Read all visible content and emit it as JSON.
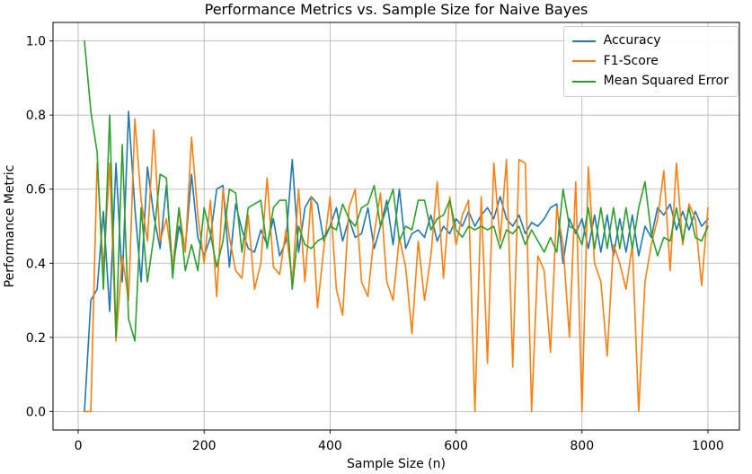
{
  "chart_data": {
    "type": "line",
    "title": "Performance Metrics vs. Sample Size for Naive Bayes",
    "xlabel": "Sample Size (n)",
    "ylabel": "Performance Metric",
    "xlim": [
      -40,
      1050
    ],
    "ylim": [
      -0.05,
      1.05
    ],
    "xticks": [
      0,
      200,
      400,
      600,
      800,
      1000
    ],
    "xtick_labels": [
      "0",
      "200",
      "400",
      "600",
      "800",
      "1000"
    ],
    "yticks": [
      0.0,
      0.2,
      0.4,
      0.6,
      0.8,
      1.0
    ],
    "ytick_labels": [
      "0.0",
      "0.2",
      "0.4",
      "0.6",
      "0.8",
      "1.0"
    ],
    "grid": true,
    "legend": {
      "position": "upper right",
      "entries": [
        "Accuracy",
        "F1-Score",
        "Mean Squared Error"
      ]
    },
    "x": [
      10,
      20,
      30,
      40,
      50,
      60,
      70,
      80,
      90,
      100,
      110,
      120,
      130,
      140,
      150,
      160,
      170,
      180,
      190,
      200,
      210,
      220,
      230,
      240,
      250,
      260,
      270,
      280,
      290,
      300,
      310,
      320,
      330,
      340,
      350,
      360,
      370,
      380,
      390,
      400,
      410,
      420,
      430,
      440,
      450,
      460,
      470,
      480,
      490,
      500,
      510,
      520,
      530,
      540,
      550,
      560,
      570,
      580,
      590,
      600,
      610,
      620,
      630,
      640,
      650,
      660,
      670,
      680,
      690,
      700,
      710,
      720,
      730,
      740,
      750,
      760,
      770,
      780,
      790,
      800,
      810,
      820,
      830,
      840,
      850,
      860,
      870,
      880,
      890,
      900,
      910,
      920,
      930,
      940,
      950,
      960,
      970,
      980,
      990,
      1000
    ],
    "series": [
      {
        "name": "Accuracy",
        "color": "#1f77b4",
        "values": [
          0.0,
          0.3,
          0.33,
          0.54,
          0.27,
          0.67,
          0.35,
          0.81,
          0.55,
          0.35,
          0.66,
          0.53,
          0.44,
          0.61,
          0.38,
          0.5,
          0.44,
          0.64,
          0.47,
          0.42,
          0.47,
          0.6,
          0.61,
          0.39,
          0.56,
          0.49,
          0.44,
          0.43,
          0.49,
          0.45,
          0.52,
          0.42,
          0.46,
          0.68,
          0.43,
          0.55,
          0.58,
          0.56,
          0.46,
          0.5,
          0.55,
          0.46,
          0.52,
          0.47,
          0.48,
          0.55,
          0.44,
          0.5,
          0.57,
          0.45,
          0.6,
          0.44,
          0.48,
          0.49,
          0.47,
          0.53,
          0.46,
          0.5,
          0.48,
          0.52,
          0.5,
          0.54,
          0.5,
          0.53,
          0.55,
          0.52,
          0.58,
          0.52,
          0.5,
          0.53,
          0.48,
          0.51,
          0.5,
          0.52,
          0.55,
          0.56,
          0.4,
          0.52,
          0.48,
          0.52,
          0.44,
          0.53,
          0.43,
          0.53,
          0.42,
          0.52,
          0.43,
          0.53,
          0.42,
          0.5,
          0.47,
          0.55,
          0.53,
          0.56,
          0.49,
          0.54,
          0.49,
          0.54,
          0.5,
          0.52
        ]
      },
      {
        "name": "F1-Score",
        "color": "#ff7f0e",
        "values": [
          0.0,
          0.0,
          0.67,
          0.38,
          0.67,
          0.19,
          0.42,
          0.3,
          0.79,
          0.57,
          0.46,
          0.76,
          0.46,
          0.52,
          0.39,
          0.55,
          0.43,
          0.74,
          0.53,
          0.4,
          0.57,
          0.31,
          0.6,
          0.47,
          0.38,
          0.36,
          0.53,
          0.33,
          0.4,
          0.63,
          0.39,
          0.37,
          0.49,
          0.35,
          0.6,
          0.35,
          0.58,
          0.28,
          0.44,
          0.58,
          0.33,
          0.26,
          0.55,
          0.6,
          0.35,
          0.31,
          0.48,
          0.59,
          0.35,
          0.3,
          0.47,
          0.39,
          0.21,
          0.46,
          0.3,
          0.42,
          0.62,
          0.36,
          0.58,
          0.45,
          0.53,
          0.57,
          0.0,
          0.58,
          0.13,
          0.67,
          0.46,
          0.68,
          0.12,
          0.68,
          0.67,
          0.0,
          0.42,
          0.38,
          0.16,
          0.55,
          0.45,
          0.2,
          0.62,
          0.0,
          0.66,
          0.4,
          0.35,
          0.15,
          0.45,
          0.4,
          0.33,
          0.45,
          0.0,
          0.35,
          0.45,
          0.52,
          0.65,
          0.38,
          0.67,
          0.45,
          0.56,
          0.52,
          0.34,
          0.55
        ]
      },
      {
        "name": "Mean Squared Error",
        "color": "#2ca02c",
        "values": [
          1.0,
          0.81,
          0.7,
          0.33,
          0.8,
          0.2,
          0.72,
          0.25,
          0.19,
          0.55,
          0.35,
          0.47,
          0.64,
          0.63,
          0.36,
          0.55,
          0.38,
          0.45,
          0.38,
          0.55,
          0.48,
          0.39,
          0.46,
          0.6,
          0.59,
          0.43,
          0.55,
          0.56,
          0.57,
          0.44,
          0.55,
          0.57,
          0.57,
          0.33,
          0.5,
          0.45,
          0.44,
          0.46,
          0.47,
          0.5,
          0.49,
          0.56,
          0.52,
          0.5,
          0.55,
          0.56,
          0.61,
          0.5,
          0.55,
          0.6,
          0.46,
          0.5,
          0.49,
          0.57,
          0.57,
          0.49,
          0.52,
          0.53,
          0.57,
          0.49,
          0.47,
          0.5,
          0.49,
          0.5,
          0.49,
          0.5,
          0.44,
          0.49,
          0.48,
          0.5,
          0.45,
          0.49,
          0.46,
          0.43,
          0.47,
          0.43,
          0.6,
          0.5,
          0.49,
          0.45,
          0.55,
          0.44,
          0.55,
          0.44,
          0.55,
          0.44,
          0.55,
          0.44,
          0.55,
          0.62,
          0.48,
          0.42,
          0.47,
          0.46,
          0.55,
          0.46,
          0.55,
          0.47,
          0.46,
          0.5
        ]
      }
    ]
  }
}
